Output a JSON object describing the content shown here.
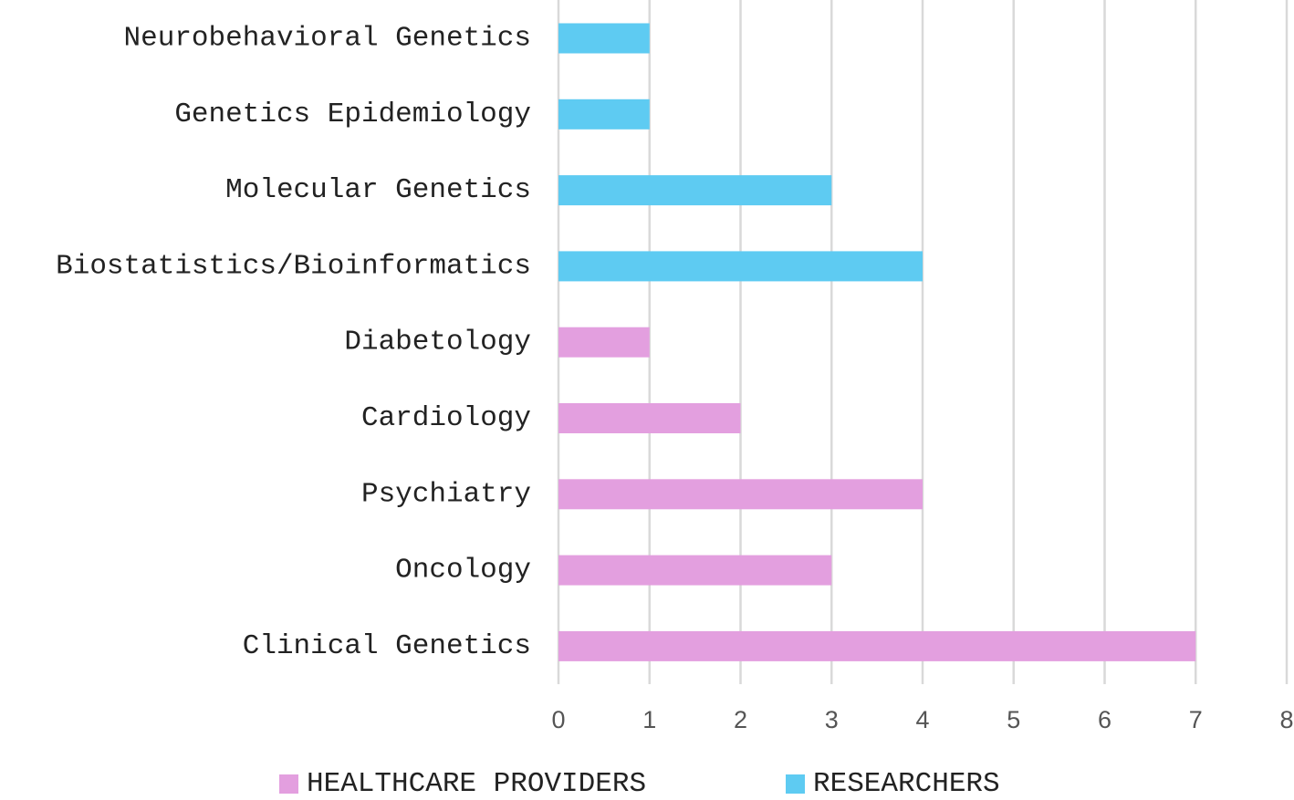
{
  "chart_data": {
    "type": "bar",
    "orientation": "horizontal",
    "categories": [
      "Neurobehavioral Genetics",
      "Genetics Epidemiology",
      "Molecular Genetics",
      "Biostatistics/Bioinformatics",
      "Diabetology",
      "Cardiology",
      "Psychiatry",
      "Oncology",
      "Clinical Genetics"
    ],
    "values": [
      1,
      1,
      3,
      4,
      1,
      2,
      4,
      3,
      7
    ],
    "series_of_category": [
      "RESEARCHERS",
      "RESEARCHERS",
      "RESEARCHERS",
      "RESEARCHERS",
      "HEALTHCARE PROVIDERS",
      "HEALTHCARE PROVIDERS",
      "HEALTHCARE PROVIDERS",
      "HEALTHCARE PROVIDERS",
      "HEALTHCARE PROVIDERS"
    ],
    "series": [
      {
        "name": "HEALTHCARE PROVIDERS",
        "color": "#e39fdf"
      },
      {
        "name": "RESEARCHERS",
        "color": "#5ecbf2"
      }
    ],
    "x_ticks": [
      "0",
      "1",
      "2",
      "3",
      "4",
      "5",
      "6",
      "7",
      "8"
    ],
    "xlim": [
      0,
      8
    ],
    "grid": true,
    "grid_color": "#d9d9d9",
    "legend_position": "bottom",
    "title": "",
    "xlabel": "",
    "ylabel": ""
  }
}
